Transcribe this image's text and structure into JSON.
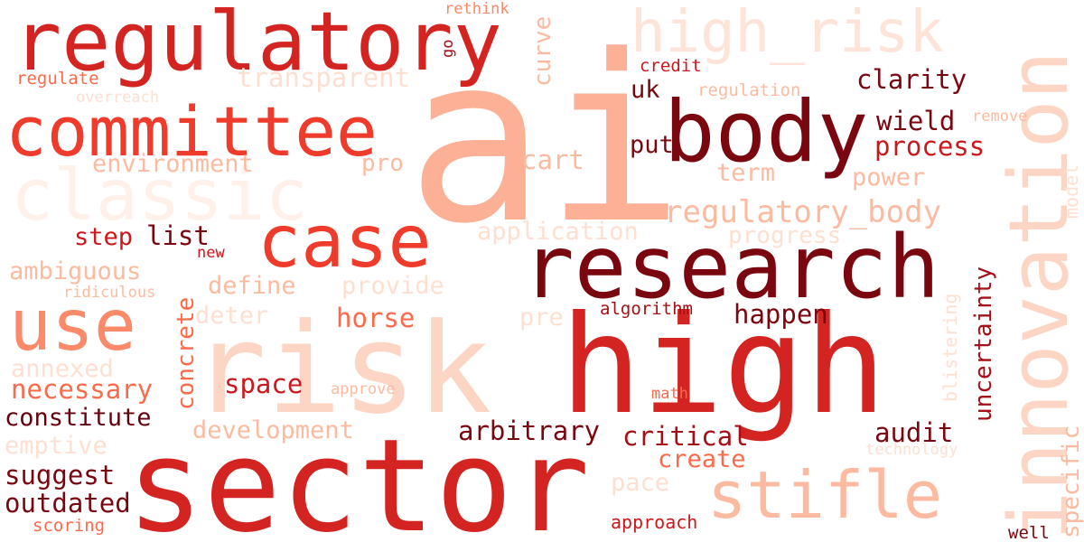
{
  "palette": [
    "#fff5f0",
    "#fee0d2",
    "#fcbba1",
    "#fc9272",
    "#fb6a4a",
    "#ef3b2c",
    "#cb181d",
    "#a50f15",
    "#67000d"
  ],
  "words": [
    {
      "text": "ai",
      "color": "#fcb096"
    },
    {
      "text": "high",
      "color": "#d42421"
    },
    {
      "text": "sector",
      "color": "#d42421"
    },
    {
      "text": "risk",
      "color": "#fdd5c4"
    },
    {
      "text": "research",
      "color": "#7a0610"
    },
    {
      "text": "body",
      "color": "#7a0610"
    },
    {
      "text": "innovation",
      "color": "#fdd5c4"
    },
    {
      "text": "regulatory",
      "color": "#d42421"
    },
    {
      "text": "committee",
      "color": "#ef3b2c"
    },
    {
      "text": "case",
      "color": "#ef3b2c"
    },
    {
      "text": "classic",
      "color": "#fff0ea"
    },
    {
      "text": "use",
      "color": "#fb8a6a"
    },
    {
      "text": "stifle",
      "color": "#fcbba1"
    },
    {
      "text": "high_risk",
      "color": "#fee3d8"
    },
    {
      "text": "regulatory_body",
      "color": "#fcbba1"
    },
    {
      "text": "environment",
      "color": "#fcbba1"
    },
    {
      "text": "transparent",
      "color": "#fee0d2"
    },
    {
      "text": "clarity",
      "color": "#7a0610"
    },
    {
      "text": "process",
      "color": "#cb181d"
    },
    {
      "text": "wield",
      "color": "#7a0610"
    },
    {
      "text": "uk",
      "color": "#7a0610"
    },
    {
      "text": "put",
      "color": "#7a0610"
    },
    {
      "text": "term",
      "color": "#fcbba1"
    },
    {
      "text": "power",
      "color": "#fcbba1"
    },
    {
      "text": "cart",
      "color": "#fcbba1"
    },
    {
      "text": "pro",
      "color": "#fcbba1"
    },
    {
      "text": "curve",
      "color": "#fcbba1"
    },
    {
      "text": "credit",
      "color": "#cb181d"
    },
    {
      "text": "regulation",
      "color": "#fcbba1"
    },
    {
      "text": "remove",
      "color": "#fcbba1"
    },
    {
      "text": "model",
      "color": "#fee0d2"
    },
    {
      "text": "regulate",
      "color": "#fb6a4a"
    },
    {
      "text": "overreach",
      "color": "#fee0d2"
    },
    {
      "text": "rethink",
      "color": "#fb8a6a"
    },
    {
      "text": "go",
      "color": "#a50f15"
    },
    {
      "text": "application",
      "color": "#fee0d2"
    },
    {
      "text": "progress",
      "color": "#fee0d2"
    },
    {
      "text": "step",
      "color": "#cb181d"
    },
    {
      "text": "list",
      "color": "#7a0610"
    },
    {
      "text": "new",
      "color": "#cb181d"
    },
    {
      "text": "ambiguous",
      "color": "#fcbba1"
    },
    {
      "text": "ridiculous",
      "color": "#fcbba1"
    },
    {
      "text": "define",
      "color": "#fcbba1"
    },
    {
      "text": "provide",
      "color": "#fee0d2"
    },
    {
      "text": "deter",
      "color": "#fee0d2"
    },
    {
      "text": "concrete",
      "color": "#fb6a4a"
    },
    {
      "text": "horse",
      "color": "#fb6a4a"
    },
    {
      "text": "pre",
      "color": "#fee0d2"
    },
    {
      "text": "algorithm",
      "color": "#a50f15"
    },
    {
      "text": "happen",
      "color": "#7a0610"
    },
    {
      "text": "annexed",
      "color": "#fee0d2"
    },
    {
      "text": "necessary",
      "color": "#fb6a4a"
    },
    {
      "text": "space",
      "color": "#cb181d"
    },
    {
      "text": "approve",
      "color": "#fcbba1"
    },
    {
      "text": "math",
      "color": "#fb6a4a"
    },
    {
      "text": "constitute",
      "color": "#67000d"
    },
    {
      "text": "development",
      "color": "#fcbba1"
    },
    {
      "text": "arbitrary",
      "color": "#7a0610"
    },
    {
      "text": "critical",
      "color": "#a50f15"
    },
    {
      "text": "audit",
      "color": "#7a0610"
    },
    {
      "text": "uncertainty",
      "color": "#a50f15"
    },
    {
      "text": "blistering",
      "color": "#fee0d2"
    },
    {
      "text": "specific",
      "color": "#fcbba1"
    },
    {
      "text": "technology",
      "color": "#fee0d2"
    },
    {
      "text": "emptive",
      "color": "#fee0d2"
    },
    {
      "text": "create",
      "color": "#fb6a4a"
    },
    {
      "text": "suggest",
      "color": "#7a0610"
    },
    {
      "text": "outdated",
      "color": "#7a0610"
    },
    {
      "text": "scoring",
      "color": "#fb6a4a"
    },
    {
      "text": "pace",
      "color": "#fee0d2"
    },
    {
      "text": "approach",
      "color": "#cb181d"
    },
    {
      "text": "well",
      "color": "#7a0610"
    }
  ]
}
